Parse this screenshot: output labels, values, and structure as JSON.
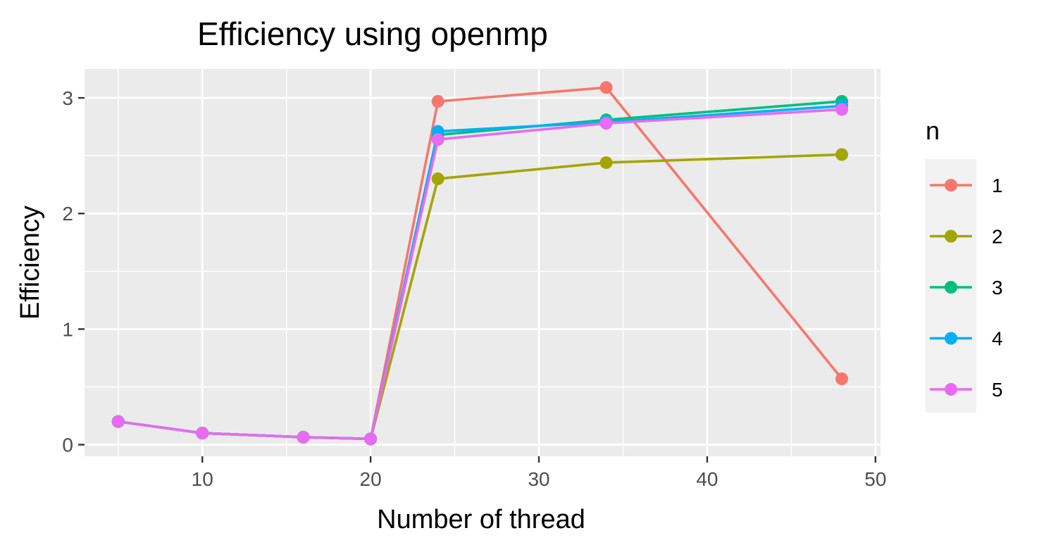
{
  "chart_data": {
    "type": "line",
    "title": "Efficiency using openmp",
    "xlabel": "Number of thread",
    "ylabel": "Efficiency",
    "xlim": [
      3,
      50.3
    ],
    "ylim": [
      -0.1,
      3.25
    ],
    "x_ticks": [
      10,
      20,
      30,
      40,
      50
    ],
    "x_minor_ticks": [
      5,
      15,
      25,
      35,
      45
    ],
    "y_ticks": [
      0,
      1,
      2,
      3
    ],
    "y_minor_ticks": [
      0.5,
      1.5,
      2.5
    ],
    "grid": true,
    "panel_background": "#ebebeb",
    "grid_color": "#ffffff",
    "legend": {
      "title": "n",
      "position": "right",
      "background": "#f2f2f2"
    },
    "x": [
      5,
      10,
      16,
      20,
      24,
      34,
      48
    ],
    "series": [
      {
        "name": "1",
        "color": "#f8766d",
        "values": [
          0.2,
          0.1,
          0.065,
          0.05,
          2.97,
          3.09,
          0.57
        ]
      },
      {
        "name": "2",
        "color": "#a3a500",
        "values": [
          0.2,
          0.1,
          0.065,
          0.05,
          2.3,
          2.44,
          2.51
        ]
      },
      {
        "name": "3",
        "color": "#00bf7d",
        "values": [
          0.2,
          0.1,
          0.065,
          0.05,
          2.68,
          2.81,
          2.97
        ]
      },
      {
        "name": "4",
        "color": "#00b0f6",
        "values": [
          0.2,
          0.1,
          0.065,
          0.05,
          2.71,
          2.79,
          2.93
        ]
      },
      {
        "name": "5",
        "color": "#e76bf3",
        "values": [
          0.2,
          0.1,
          0.065,
          0.05,
          2.64,
          2.78,
          2.9
        ]
      }
    ]
  }
}
